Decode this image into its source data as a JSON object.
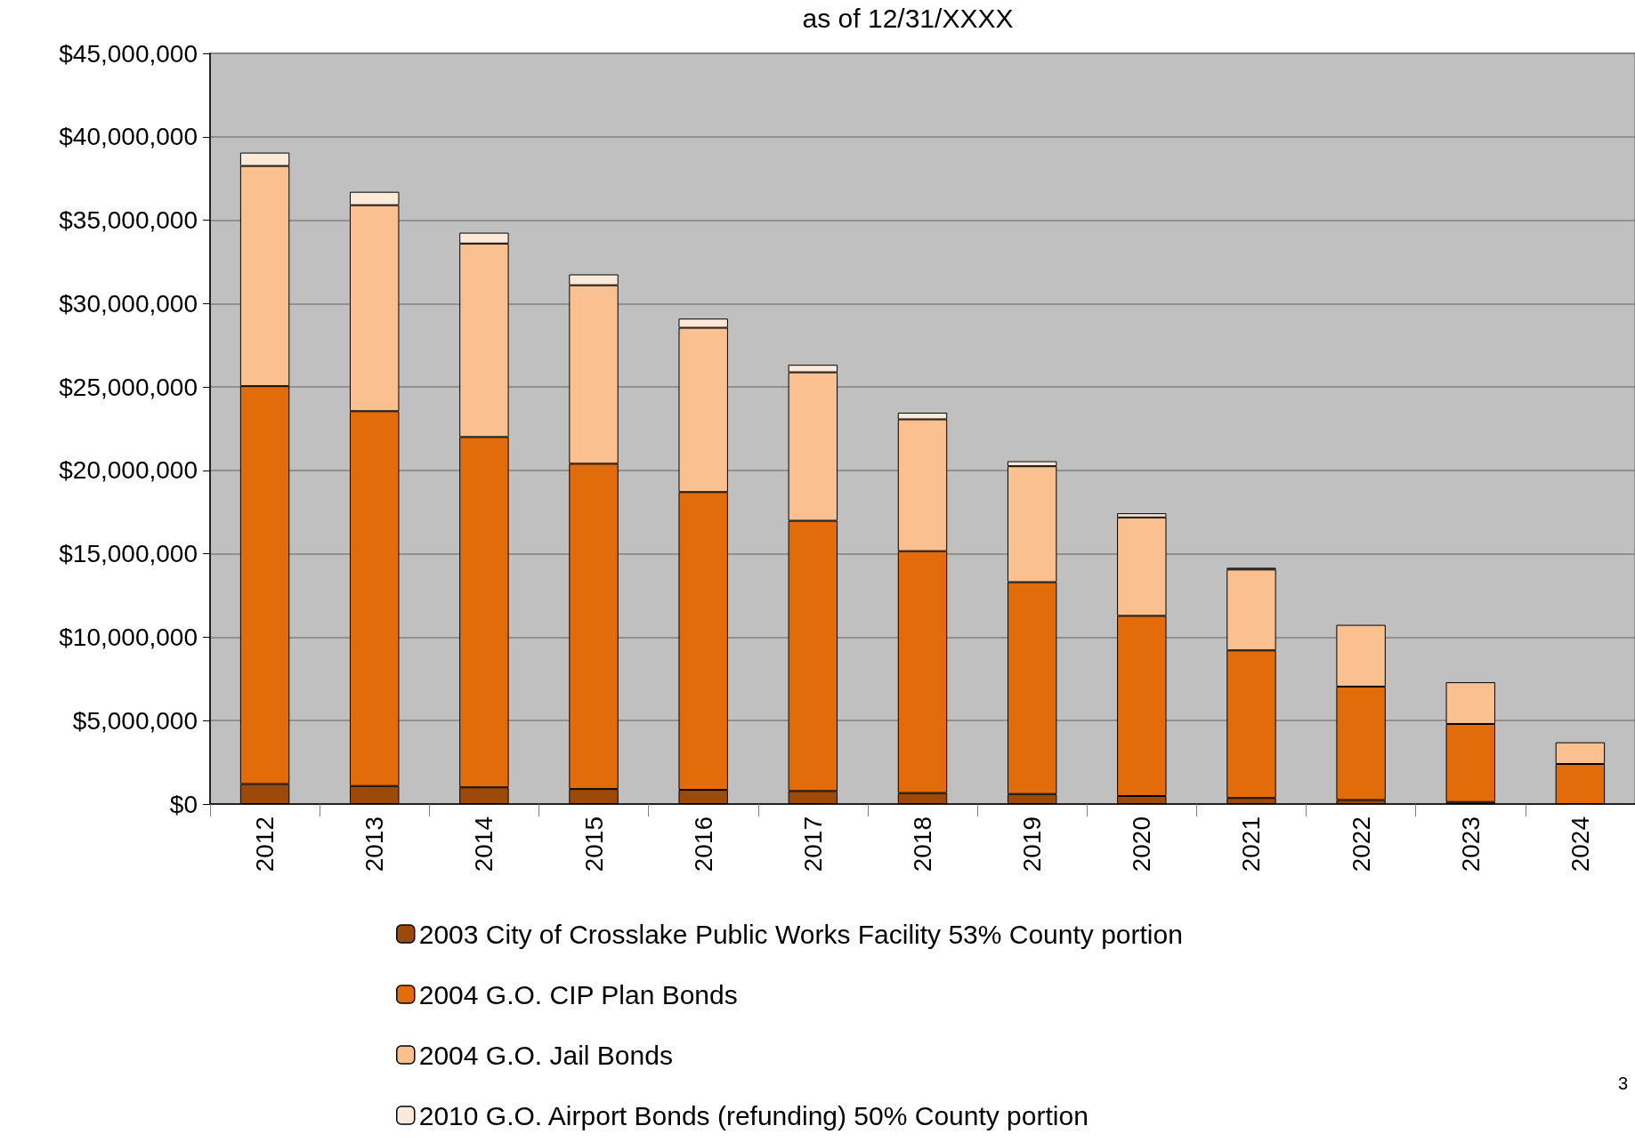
{
  "chart_data": {
    "type": "bar",
    "title": "as of 12/31/XXXX",
    "stacked": true,
    "categories": [
      "2012",
      "2013",
      "2014",
      "2015",
      "2016",
      "2017",
      "2018",
      "2019",
      "2020",
      "2021",
      "2022",
      "2023",
      "2024"
    ],
    "series": [
      {
        "name": "2003 City of Crosslake Public Works Facility 53% County portion",
        "color": "#9c4a0a",
        "values": [
          1200000.0,
          1080000.0,
          1000000.0,
          900000.0,
          850000.0,
          780000.0,
          660000.0,
          600000.0,
          480000.0,
          360000.0,
          240000.0,
          120000.0,
          null
        ]
      },
      {
        "name": "2004 G.O. CIP Plan Bonds",
        "color": "#e36c0a",
        "values": [
          23850000.0,
          22470000.0,
          21000000.0,
          19500000.0,
          17850000.0,
          16200000.0,
          14500000.0,
          12700000.0,
          10800000.0,
          8850000.0,
          6800000.0,
          4680000.0,
          2400000.0
        ]
      },
      {
        "name": "2004 G.O. Jail Bonds",
        "color": "#fac090",
        "values": [
          13200000.0,
          12350000.0,
          11600000.0,
          10700000.0,
          9850000.0,
          8900000.0,
          7900000.0,
          6950000.0,
          5900000.0,
          4850000.0,
          3700000.0,
          2500000.0,
          1300000.0
        ]
      },
      {
        "name": "2010 G.O. Airport Bonds (refunding) 50% County portion",
        "color": "#fde9d9",
        "values": [
          800000.0,
          800000.0,
          650000.0,
          650000.0,
          550000.0,
          450000.0,
          400000.0,
          300000.0,
          250000.0,
          100000.0,
          null,
          null,
          null
        ]
      }
    ],
    "ylim": [
      0,
      45000000
    ],
    "yticks": [
      {
        "value": 0,
        "label": "$0"
      },
      {
        "value": 5000000,
        "label": "$5,000,000"
      },
      {
        "value": 10000000,
        "label": "$10,000,000"
      },
      {
        "value": 15000000,
        "label": "$15,000,000"
      },
      {
        "value": 20000000,
        "label": "$20,000,000"
      },
      {
        "value": 25000000,
        "label": "$25,000,000"
      },
      {
        "value": 30000000,
        "label": "$30,000,000"
      },
      {
        "value": 35000000,
        "label": "$35,000,000"
      },
      {
        "value": 40000000,
        "label": "$40,000,000"
      },
      {
        "value": 45000000,
        "label": "$45,000,000"
      }
    ],
    "grid": "y",
    "legend": "bottom",
    "annotations": [
      "3"
    ]
  }
}
